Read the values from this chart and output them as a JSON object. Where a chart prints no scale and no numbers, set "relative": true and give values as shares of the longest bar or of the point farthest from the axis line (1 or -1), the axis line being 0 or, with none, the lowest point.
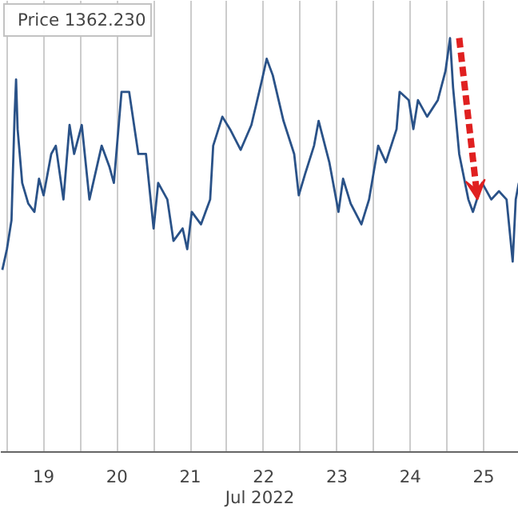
{
  "chart_data": {
    "type": "line",
    "relative": true,
    "xlabel": "Jul 2022",
    "legend": "top left",
    "grid": "x",
    "marker": "none",
    "line_style": "solid",
    "xlim": [
      "2022-07-18T22:00",
      "2022-07-25T23:30"
    ],
    "xticks": [
      {
        "value": "2022-07-19T00:00",
        "label": null
      },
      {
        "value": "2022-07-19T12:00",
        "label": "19"
      },
      {
        "value": "2022-07-20T00:00",
        "label": null
      },
      {
        "value": "2022-07-20T12:00",
        "label": "20"
      },
      {
        "value": "2022-07-21T00:00",
        "label": null
      },
      {
        "value": "2022-07-21T12:00",
        "label": "21"
      },
      {
        "value": "2022-07-22T00:00",
        "label": null
      },
      {
        "value": "2022-07-22T12:00",
        "label": "22"
      },
      {
        "value": "2022-07-23T00:00",
        "label": null
      },
      {
        "value": "2022-07-23T12:00",
        "label": "23"
      },
      {
        "value": "2022-07-24T00:00",
        "label": null
      },
      {
        "value": "2022-07-24T12:00",
        "label": "24"
      },
      {
        "value": "2022-07-25T00:00",
        "label": null
      },
      {
        "value": "2022-07-25T12:00",
        "label": "25"
      }
    ],
    "x": [
      "2022-07-18T22:30",
      "2022-07-19T00:00",
      "2022-07-19T01:30",
      "2022-07-19T02:30",
      "2022-07-19T03:00",
      "2022-07-19T03:30",
      "2022-07-19T05:00",
      "2022-07-19T07:00",
      "2022-07-19T09:00",
      "2022-07-19T10:30",
      "2022-07-19T12:00",
      "2022-07-19T14:30",
      "2022-07-19T16:00",
      "2022-07-19T18:30",
      "2022-07-19T20:30",
      "2022-07-19T22:00",
      "2022-07-20T00:30",
      "2022-07-20T03:00",
      "2022-07-20T07:00",
      "2022-07-20T09:30",
      "2022-07-20T11:00",
      "2022-07-20T13:30",
      "2022-07-20T16:00",
      "2022-07-20T19:00",
      "2022-07-20T21:30",
      "2022-07-21T00:00",
      "2022-07-21T01:30",
      "2022-07-21T04:30",
      "2022-07-21T06:30",
      "2022-07-21T09:30",
      "2022-07-21T11:00",
      "2022-07-21T12:30",
      "2022-07-21T15:30",
      "2022-07-21T18:30",
      "2022-07-21T19:30",
      "2022-07-21T22:30",
      "2022-07-22T01:00",
      "2022-07-22T04:30",
      "2022-07-22T08:00",
      "2022-07-22T11:30",
      "2022-07-22T13:00",
      "2022-07-22T15:00",
      "2022-07-22T18:30",
      "2022-07-22T22:00",
      "2022-07-22T23:30",
      "2022-07-23T01:30",
      "2022-07-23T04:30",
      "2022-07-23T06:00",
      "2022-07-23T09:30",
      "2022-07-23T12:30",
      "2022-07-23T14:00",
      "2022-07-23T16:30",
      "2022-07-23T20:00",
      "2022-07-23T22:30",
      "2022-07-24T01:30",
      "2022-07-24T04:00",
      "2022-07-24T07:30",
      "2022-07-24T08:30",
      "2022-07-24T11:30",
      "2022-07-24T13:00",
      "2022-07-24T14:30",
      "2022-07-24T17:30",
      "2022-07-24T21:00",
      "2022-07-24T23:30",
      "2022-07-25T01:00",
      "2022-07-25T02:00",
      "2022-07-25T04:00",
      "2022-07-25T07:00",
      "2022-07-25T08:30",
      "2022-07-25T11:30",
      "2022-07-25T14:30",
      "2022-07-25T17:00",
      "2022-07-25T19:30",
      "2022-07-25T21:30",
      "2022-07-25T22:30",
      "2022-07-25T23:30"
    ],
    "series": [
      {
        "name": "Price 1362.230",
        "color": "#2a5288",
        "values": [
          0.44,
          0.49,
          0.56,
          0.81,
          0.9,
          0.78,
          0.65,
          0.6,
          0.58,
          0.66,
          0.62,
          0.72,
          0.74,
          0.61,
          0.79,
          0.72,
          0.79,
          0.61,
          0.74,
          0.69,
          0.65,
          0.87,
          0.87,
          0.72,
          0.72,
          0.54,
          0.65,
          0.61,
          0.51,
          0.54,
          0.49,
          0.58,
          0.55,
          0.61,
          0.74,
          0.81,
          0.78,
          0.73,
          0.79,
          0.9,
          0.95,
          0.91,
          0.8,
          0.72,
          0.62,
          0.67,
          0.74,
          0.8,
          0.7,
          0.58,
          0.66,
          0.6,
          0.55,
          0.61,
          0.74,
          0.7,
          0.78,
          0.87,
          0.85,
          0.78,
          0.85,
          0.81,
          0.85,
          0.92,
          1.0,
          0.88,
          0.72,
          0.61,
          0.58,
          0.65,
          0.61,
          0.63,
          0.61,
          0.46,
          0.61,
          0.65
        ]
      }
    ]
  }
}
